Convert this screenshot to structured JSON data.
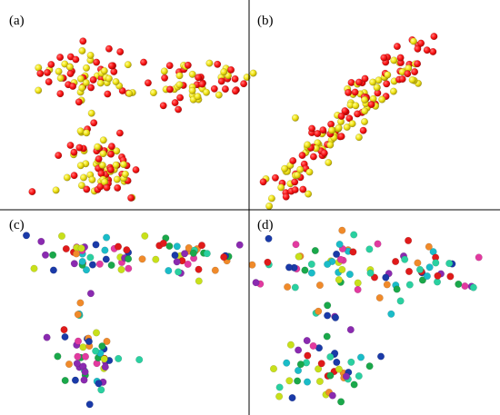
{
  "panels": [
    {
      "label": "(a)",
      "style": "pair",
      "cluster_layout": "three-clusters"
    },
    {
      "label": "(b)",
      "style": "pair",
      "cluster_layout": "diagonal"
    },
    {
      "label": "(c)",
      "style": "multi",
      "cluster_layout": "three-clusters"
    },
    {
      "label": "(d)",
      "style": "multi",
      "cluster_layout": "three-clusters-spread"
    }
  ],
  "colors": {
    "pair": [
      "#ff1a1a",
      "#f2e51a"
    ],
    "multi": [
      "#1aa84a",
      "#e23aa0",
      "#1abcc8",
      "#1a3aa8",
      "#8a2ab0",
      "#f08a2a",
      "#c8e01a",
      "#2ad0a0",
      "#e01a1a"
    ],
    "divider": "#000000"
  }
}
